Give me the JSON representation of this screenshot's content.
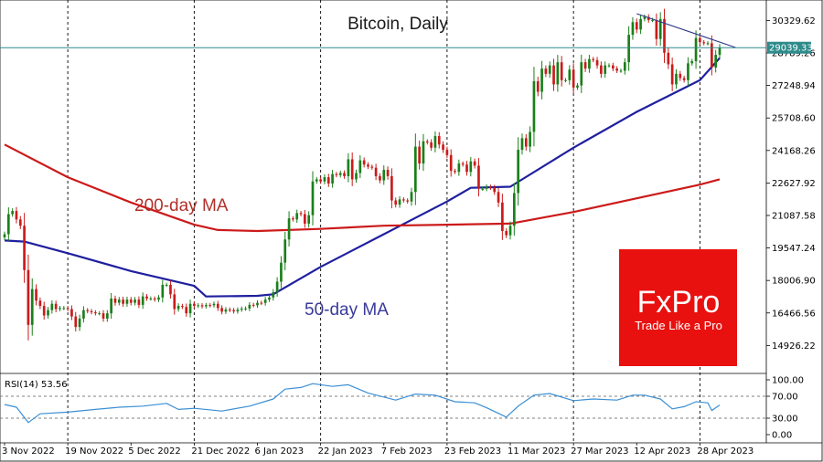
{
  "chart_data": {
    "type": "candlestick",
    "title": "Bitcoin, Daily",
    "price_axis": {
      "min": 13600,
      "max": 31300,
      "ticks": [
        "30329.62",
        "28789.26",
        "27248.94",
        "25708.60",
        "24168.26",
        "22627.92",
        "21087.58",
        "19547.24",
        "18006.90",
        "16466.56",
        "14926.22"
      ]
    },
    "time_axis": {
      "start": "2022-11-03",
      "end": "2023-05-03",
      "labels": [
        "3 Nov 2022",
        "19 Nov 2022",
        "5 Dec 2022",
        "21 Dec 2022",
        "6 Jan 2023",
        "22 Jan 2023",
        "7 Feb 2023",
        "23 Feb 2023",
        "11 Mar 2023",
        "27 Mar 2023",
        "12 Apr 2023",
        "28 Apr 2023"
      ]
    },
    "vertical_dashed_lines": [
      "19 Nov 2022",
      "21 Dec 2022",
      "22 Jan 2023",
      "23 Feb 2023",
      "27 Mar 2023",
      "28 Apr 2023"
    ],
    "current_price": {
      "label": "29039.33",
      "value": 29039.33,
      "color": "#2e8b8b"
    },
    "close_series": [
      {
        "date": "2022-11-03",
        "close": 20200
      },
      {
        "date": "2022-11-04",
        "close": 21150
      },
      {
        "date": "2022-11-05",
        "close": 21300
      },
      {
        "date": "2022-11-06",
        "close": 20900
      },
      {
        "date": "2022-11-07",
        "close": 20600
      },
      {
        "date": "2022-11-08",
        "close": 18500
      },
      {
        "date": "2022-11-09",
        "close": 15900
      },
      {
        "date": "2022-11-10",
        "close": 17600
      },
      {
        "date": "2022-11-11",
        "close": 17050
      },
      {
        "date": "2022-11-12",
        "close": 16800
      },
      {
        "date": "2022-11-13",
        "close": 16350
      },
      {
        "date": "2022-11-14",
        "close": 16600
      },
      {
        "date": "2022-11-15",
        "close": 16900
      },
      {
        "date": "2022-11-16",
        "close": 16650
      },
      {
        "date": "2022-11-17",
        "close": 16700
      },
      {
        "date": "2022-11-18",
        "close": 16700
      },
      {
        "date": "2022-11-19",
        "close": 16650
      },
      {
        "date": "2022-11-20",
        "close": 16300
      },
      {
        "date": "2022-11-21",
        "close": 15800
      },
      {
        "date": "2022-11-22",
        "close": 16200
      },
      {
        "date": "2022-11-23",
        "close": 16600
      },
      {
        "date": "2022-11-24",
        "close": 16550
      },
      {
        "date": "2022-11-25",
        "close": 16500
      },
      {
        "date": "2022-11-26",
        "close": 16450
      },
      {
        "date": "2022-11-27",
        "close": 16450
      },
      {
        "date": "2022-11-28",
        "close": 16200
      },
      {
        "date": "2022-11-29",
        "close": 16450
      },
      {
        "date": "2022-11-30",
        "close": 17150
      },
      {
        "date": "2022-12-01",
        "close": 16950
      },
      {
        "date": "2022-12-02",
        "close": 17100
      },
      {
        "date": "2022-12-03",
        "close": 16900
      },
      {
        "date": "2022-12-04",
        "close": 17100
      },
      {
        "date": "2022-12-05",
        "close": 16950
      },
      {
        "date": "2022-12-06",
        "close": 17100
      },
      {
        "date": "2022-12-07",
        "close": 16850
      },
      {
        "date": "2022-12-08",
        "close": 17250
      },
      {
        "date": "2022-12-09",
        "close": 17150
      },
      {
        "date": "2022-12-10",
        "close": 17150
      },
      {
        "date": "2022-12-11",
        "close": 17100
      },
      {
        "date": "2022-12-12",
        "close": 17200
      },
      {
        "date": "2022-12-13",
        "close": 17800
      },
      {
        "date": "2022-12-14",
        "close": 17800
      },
      {
        "date": "2022-12-15",
        "close": 17350
      },
      {
        "date": "2022-12-16",
        "close": 16650
      },
      {
        "date": "2022-12-17",
        "close": 16800
      },
      {
        "date": "2022-12-18",
        "close": 16750
      },
      {
        "date": "2022-12-19",
        "close": 16450
      },
      {
        "date": "2022-12-20",
        "close": 16900
      },
      {
        "date": "2022-12-21",
        "close": 16800
      },
      {
        "date": "2022-12-22",
        "close": 16830
      },
      {
        "date": "2022-12-23",
        "close": 16780
      },
      {
        "date": "2022-12-24",
        "close": 16840
      },
      {
        "date": "2022-12-25",
        "close": 16830
      },
      {
        "date": "2022-12-26",
        "close": 16900
      },
      {
        "date": "2022-12-27",
        "close": 16700
      },
      {
        "date": "2022-12-28",
        "close": 16530
      },
      {
        "date": "2022-12-29",
        "close": 16630
      },
      {
        "date": "2022-12-30",
        "close": 16600
      },
      {
        "date": "2022-12-31",
        "close": 16540
      },
      {
        "date": "2023-01-01",
        "close": 16620
      },
      {
        "date": "2023-01-02",
        "close": 16670
      },
      {
        "date": "2023-01-03",
        "close": 16680
      },
      {
        "date": "2023-01-04",
        "close": 16850
      },
      {
        "date": "2023-01-05",
        "close": 16830
      },
      {
        "date": "2023-01-06",
        "close": 16950
      },
      {
        "date": "2023-01-07",
        "close": 16940
      },
      {
        "date": "2023-01-08",
        "close": 17100
      },
      {
        "date": "2023-01-09",
        "close": 17200
      },
      {
        "date": "2023-01-10",
        "close": 17450
      },
      {
        "date": "2023-01-11",
        "close": 17950
      },
      {
        "date": "2023-01-12",
        "close": 18850
      },
      {
        "date": "2023-01-13",
        "close": 19950
      },
      {
        "date": "2023-01-14",
        "close": 20950
      },
      {
        "date": "2023-01-15",
        "close": 20900
      },
      {
        "date": "2023-01-16",
        "close": 21200
      },
      {
        "date": "2023-01-17",
        "close": 21150
      },
      {
        "date": "2023-01-18",
        "close": 20700
      },
      {
        "date": "2023-01-19",
        "close": 21100
      },
      {
        "date": "2023-01-20",
        "close": 22700
      },
      {
        "date": "2023-01-21",
        "close": 22800
      },
      {
        "date": "2023-01-22",
        "close": 22700
      },
      {
        "date": "2023-01-23",
        "close": 22900
      },
      {
        "date": "2023-01-24",
        "close": 22600
      },
      {
        "date": "2023-01-25",
        "close": 23050
      },
      {
        "date": "2023-01-26",
        "close": 23000
      },
      {
        "date": "2023-01-27",
        "close": 23100
      },
      {
        "date": "2023-01-28",
        "close": 22950
      },
      {
        "date": "2023-01-29",
        "close": 23750
      },
      {
        "date": "2023-01-30",
        "close": 22800
      },
      {
        "date": "2023-01-31",
        "close": 23100
      },
      {
        "date": "2023-02-01",
        "close": 23700
      },
      {
        "date": "2023-02-02",
        "close": 23500
      },
      {
        "date": "2023-02-03",
        "close": 23400
      },
      {
        "date": "2023-02-04",
        "close": 23350
      },
      {
        "date": "2023-02-05",
        "close": 22950
      },
      {
        "date": "2023-02-06",
        "close": 22750
      },
      {
        "date": "2023-02-07",
        "close": 23250
      },
      {
        "date": "2023-02-08",
        "close": 22950
      },
      {
        "date": "2023-02-09",
        "close": 21800
      },
      {
        "date": "2023-02-10",
        "close": 21600
      },
      {
        "date": "2023-02-11",
        "close": 21850
      },
      {
        "date": "2023-02-12",
        "close": 21800
      },
      {
        "date": "2023-02-13",
        "close": 21750
      },
      {
        "date": "2023-02-14",
        "close": 22200
      },
      {
        "date": "2023-02-15",
        "close": 24350
      },
      {
        "date": "2023-02-16",
        "close": 23550
      },
      {
        "date": "2023-02-17",
        "close": 24600
      },
      {
        "date": "2023-02-18",
        "close": 24550
      },
      {
        "date": "2023-02-19",
        "close": 24300
      },
      {
        "date": "2023-02-20",
        "close": 24850
      },
      {
        "date": "2023-02-21",
        "close": 24450
      },
      {
        "date": "2023-02-22",
        "close": 24200
      },
      {
        "date": "2023-02-23",
        "close": 23950
      },
      {
        "date": "2023-02-24",
        "close": 23200
      },
      {
        "date": "2023-02-25",
        "close": 23150
      },
      {
        "date": "2023-02-26",
        "close": 23550
      },
      {
        "date": "2023-02-27",
        "close": 23500
      },
      {
        "date": "2023-02-28",
        "close": 23150
      },
      {
        "date": "2023-03-01",
        "close": 23650
      },
      {
        "date": "2023-03-02",
        "close": 23450
      },
      {
        "date": "2023-03-03",
        "close": 22350
      },
      {
        "date": "2023-03-04",
        "close": 22350
      },
      {
        "date": "2023-03-05",
        "close": 22450
      },
      {
        "date": "2023-03-06",
        "close": 22400
      },
      {
        "date": "2023-03-07",
        "close": 22200
      },
      {
        "date": "2023-03-08",
        "close": 21700
      },
      {
        "date": "2023-03-09",
        "close": 20350
      },
      {
        "date": "2023-03-10",
        "close": 20150
      },
      {
        "date": "2023-03-11",
        "close": 20600
      },
      {
        "date": "2023-03-12",
        "close": 22150
      },
      {
        "date": "2023-03-13",
        "close": 24200
      },
      {
        "date": "2023-03-14",
        "close": 24750
      },
      {
        "date": "2023-03-15",
        "close": 24350
      },
      {
        "date": "2023-03-16",
        "close": 25050
      },
      {
        "date": "2023-03-17",
        "close": 27450
      },
      {
        "date": "2023-03-18",
        "close": 26950
      },
      {
        "date": "2023-03-19",
        "close": 28050
      },
      {
        "date": "2023-03-20",
        "close": 27800
      },
      {
        "date": "2023-03-21",
        "close": 28200
      },
      {
        "date": "2023-03-22",
        "close": 27300
      },
      {
        "date": "2023-03-23",
        "close": 28350
      },
      {
        "date": "2023-03-24",
        "close": 27500
      },
      {
        "date": "2023-03-25",
        "close": 27500
      },
      {
        "date": "2023-03-26",
        "close": 28000
      },
      {
        "date": "2023-03-27",
        "close": 27150
      },
      {
        "date": "2023-03-28",
        "close": 27250
      },
      {
        "date": "2023-03-29",
        "close": 28350
      },
      {
        "date": "2023-03-30",
        "close": 28050
      },
      {
        "date": "2023-03-31",
        "close": 28500
      },
      {
        "date": "2023-04-01",
        "close": 28450
      },
      {
        "date": "2023-04-02",
        "close": 28200
      },
      {
        "date": "2023-04-03",
        "close": 27800
      },
      {
        "date": "2023-04-04",
        "close": 28200
      },
      {
        "date": "2023-04-05",
        "close": 28200
      },
      {
        "date": "2023-04-06",
        "close": 28050
      },
      {
        "date": "2023-04-07",
        "close": 27950
      },
      {
        "date": "2023-04-08",
        "close": 27950
      },
      {
        "date": "2023-04-09",
        "close": 28350
      },
      {
        "date": "2023-04-10",
        "close": 29650
      },
      {
        "date": "2023-04-11",
        "close": 30250
      },
      {
        "date": "2023-04-12",
        "close": 29900
      },
      {
        "date": "2023-04-13",
        "close": 30400
      },
      {
        "date": "2023-04-14",
        "close": 30500
      },
      {
        "date": "2023-04-15",
        "close": 30350
      },
      {
        "date": "2023-04-16",
        "close": 30350
      },
      {
        "date": "2023-04-17",
        "close": 29450
      },
      {
        "date": "2023-04-18",
        "close": 30400
      },
      {
        "date": "2023-04-19",
        "close": 28800
      },
      {
        "date": "2023-04-20",
        "close": 28250
      },
      {
        "date": "2023-04-21",
        "close": 27300
      },
      {
        "date": "2023-04-22",
        "close": 27800
      },
      {
        "date": "2023-04-23",
        "close": 27600
      },
      {
        "date": "2023-04-24",
        "close": 27500
      },
      {
        "date": "2023-04-25",
        "close": 28300
      },
      {
        "date": "2023-04-26",
        "close": 28400
      },
      {
        "date": "2023-04-27",
        "close": 29500
      },
      {
        "date": "2023-04-28",
        "close": 29300
      },
      {
        "date": "2023-04-29",
        "close": 29250
      },
      {
        "date": "2023-04-30",
        "close": 29250
      },
      {
        "date": "2023-05-01",
        "close": 28100
      },
      {
        "date": "2023-05-02",
        "close": 28700
      },
      {
        "date": "2023-05-03",
        "close": 29039
      }
    ],
    "moving_averages": [
      {
        "name": "50-day MA",
        "color": "#1f1f9f",
        "points": [
          [
            "2022-11-03",
            19900
          ],
          [
            "2022-11-08",
            19850
          ],
          [
            "2022-11-19",
            19300
          ],
          [
            "2022-12-05",
            18450
          ],
          [
            "2022-12-21",
            17750
          ],
          [
            "2022-12-24",
            17250
          ],
          [
            "2023-01-06",
            17280
          ],
          [
            "2023-01-10",
            17350
          ],
          [
            "2023-01-22",
            18650
          ],
          [
            "2023-02-07",
            20200
          ],
          [
            "2023-02-23",
            21750
          ],
          [
            "2023-03-01",
            22400
          ],
          [
            "2023-03-11",
            22450
          ],
          [
            "2023-03-27",
            24300
          ],
          [
            "2023-04-12",
            26000
          ],
          [
            "2023-04-28",
            27500
          ],
          [
            "2023-05-03",
            28550
          ]
        ]
      },
      {
        "name": "200-day MA",
        "color": "#cc1a1a",
        "points": [
          [
            "2022-11-03",
            24450
          ],
          [
            "2022-11-19",
            22900
          ],
          [
            "2022-12-05",
            21700
          ],
          [
            "2022-12-21",
            20650
          ],
          [
            "2022-12-27",
            20400
          ],
          [
            "2023-01-06",
            20350
          ],
          [
            "2023-01-22",
            20450
          ],
          [
            "2023-02-07",
            20600
          ],
          [
            "2023-02-23",
            20650
          ],
          [
            "2023-03-11",
            20700
          ],
          [
            "2023-03-27",
            21250
          ],
          [
            "2023-04-12",
            21900
          ],
          [
            "2023-04-28",
            22550
          ],
          [
            "2023-05-03",
            22800
          ]
        ]
      }
    ],
    "trendline": {
      "color": "#2e3a8c",
      "points": [
        [
          "2023-04-12",
          30650
        ],
        [
          "2023-05-07",
          29050
        ]
      ]
    },
    "annotations": [
      {
        "text": "200-day MA",
        "color": "#b0302a"
      },
      {
        "text": "50-day MA",
        "color": "#3a3a9a"
      }
    ],
    "rsi": {
      "label": "RSI(14) 53.56",
      "ticks": [
        "100.00",
        "70.00",
        "30.00",
        "0.00"
      ],
      "levels": [
        70,
        30
      ],
      "color": "#3b8fd4",
      "points": [
        [
          "2022-11-03",
          55
        ],
        [
          "2022-11-06",
          50
        ],
        [
          "2022-11-09",
          22
        ],
        [
          "2022-11-12",
          38
        ],
        [
          "2022-11-19",
          41
        ],
        [
          "2022-11-26",
          46
        ],
        [
          "2022-12-02",
          50
        ],
        [
          "2022-12-08",
          52
        ],
        [
          "2022-12-14",
          57
        ],
        [
          "2022-12-17",
          46
        ],
        [
          "2022-12-21",
          48
        ],
        [
          "2022-12-28",
          43
        ],
        [
          "2023-01-04",
          52
        ],
        [
          "2023-01-10",
          65
        ],
        [
          "2023-01-13",
          83
        ],
        [
          "2023-01-17",
          86
        ],
        [
          "2023-01-20",
          93
        ],
        [
          "2023-01-25",
          88
        ],
        [
          "2023-01-29",
          91
        ],
        [
          "2023-02-03",
          76
        ],
        [
          "2023-02-10",
          63
        ],
        [
          "2023-02-15",
          74
        ],
        [
          "2023-02-20",
          72
        ],
        [
          "2023-02-25",
          60
        ],
        [
          "2023-03-02",
          58
        ],
        [
          "2023-03-05",
          49
        ],
        [
          "2023-03-10",
          32
        ],
        [
          "2023-03-13",
          52
        ],
        [
          "2023-03-17",
          72
        ],
        [
          "2023-03-21",
          75
        ],
        [
          "2023-03-27",
          62
        ],
        [
          "2023-04-01",
          65
        ],
        [
          "2023-04-07",
          63
        ],
        [
          "2023-04-11",
          72
        ],
        [
          "2023-04-14",
          72
        ],
        [
          "2023-04-18",
          65
        ],
        [
          "2023-04-21",
          47
        ],
        [
          "2023-04-24",
          51
        ],
        [
          "2023-04-27",
          60
        ],
        [
          "2023-04-30",
          58
        ],
        [
          "2023-05-01",
          44
        ],
        [
          "2023-05-03",
          54
        ]
      ]
    }
  },
  "brand": {
    "logo_text": "FxPro",
    "tagline": "Trade Like a Pro",
    "color": "#e8110f"
  }
}
